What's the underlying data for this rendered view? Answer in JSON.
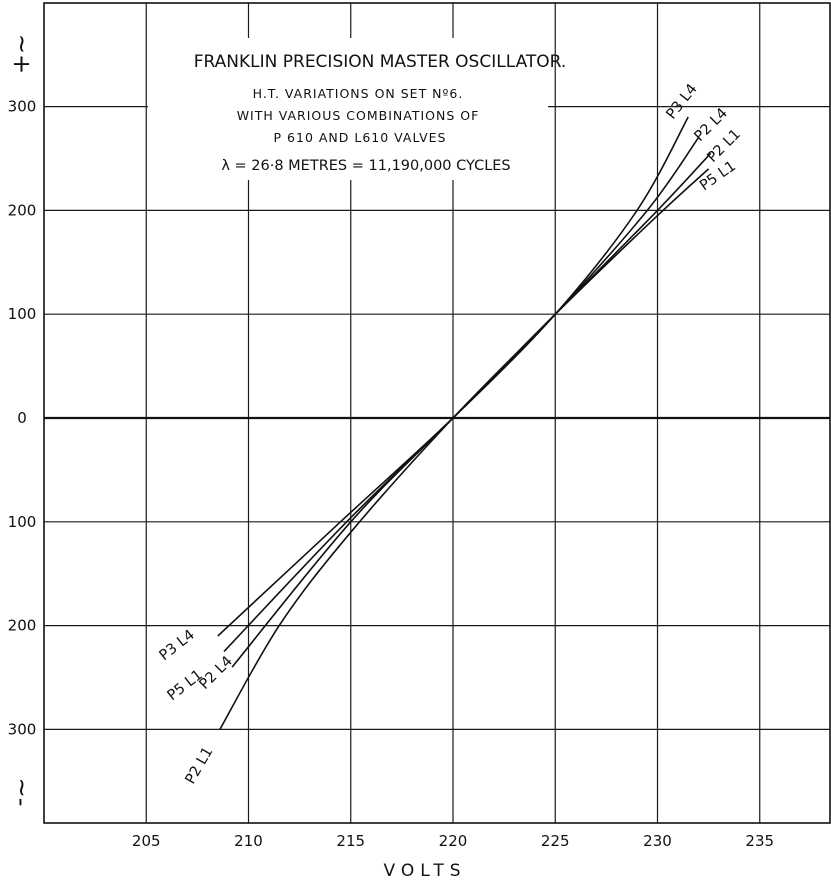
{
  "chart_data": {
    "type": "line",
    "title": "FRANKLIN   PRECISION MASTER OSCILLATOR.",
    "subtitle_lines": [
      "H.T. VARIATIONS  ON  SET  Nº6.",
      "WITH  VARIOUS  COMBINATIONS  OF",
      "P 610   AND   L610   VALVES"
    ],
    "formula": "λ = 26·8 METRES  =  11,190,000  CYCLES",
    "xlabel": "VOLTS",
    "x_ticks": [
      205,
      210,
      215,
      220,
      225,
      230,
      235
    ],
    "y_ticks": [
      {
        "value": 300,
        "label": "300"
      },
      {
        "value": 200,
        "label": "200"
      },
      {
        "value": 100,
        "label": "100"
      },
      {
        "value": 0,
        "label": "0"
      },
      {
        "value": -100,
        "label": "100"
      },
      {
        "value": -200,
        "label": "200"
      },
      {
        "value": -300,
        "label": "300"
      }
    ],
    "y_sign_top": "~+",
    "y_sign_bottom": "~-",
    "xlim": [
      200,
      240
    ],
    "ylim": [
      -390,
      390
    ],
    "grid": true,
    "series": [
      {
        "name": "P3 L4",
        "top_label": "P3 L4",
        "bottom_label": "P3 L4",
        "points": [
          [
            208.5,
            -210
          ],
          [
            214.5,
            -100
          ],
          [
            220,
            0
          ],
          [
            225,
            100
          ],
          [
            229,
            200
          ],
          [
            231.5,
            290
          ]
        ]
      },
      {
        "name": "P2 L4",
        "top_label": "P2 L4",
        "bottom_label": "P2 L4",
        "points": [
          [
            209.2,
            -240
          ],
          [
            215,
            -100
          ],
          [
            220,
            0
          ],
          [
            225,
            100
          ],
          [
            229.5,
            200
          ],
          [
            232,
            270
          ]
        ]
      },
      {
        "name": "P2 L1",
        "top_label": "P2 L1",
        "bottom_label": "P2 L1",
        "points": [
          [
            208.6,
            -300
          ],
          [
            211.5,
            -200
          ],
          [
            215,
            -110
          ],
          [
            220,
            0
          ],
          [
            225,
            100
          ],
          [
            230,
            200
          ],
          [
            232.6,
            255
          ]
        ]
      },
      {
        "name": "P5 L1",
        "top_label": "P5 L1",
        "bottom_label": "P5 L1",
        "points": [
          [
            208.8,
            -225
          ],
          [
            214.8,
            -100
          ],
          [
            220,
            0
          ],
          [
            225,
            100
          ],
          [
            230,
            195
          ],
          [
            232.5,
            240
          ]
        ]
      }
    ]
  }
}
